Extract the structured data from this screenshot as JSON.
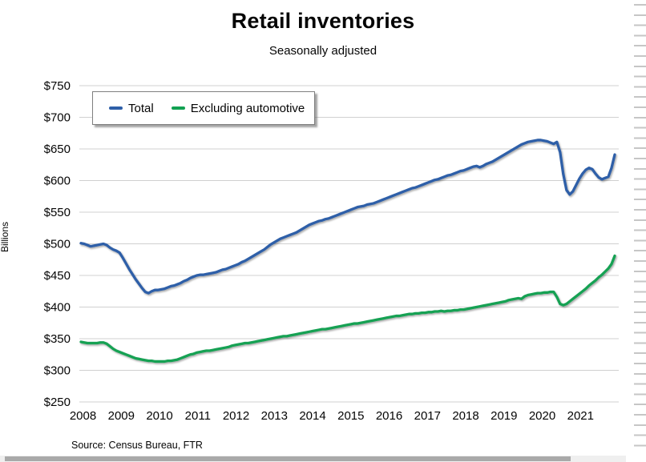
{
  "title": "Retail inventories",
  "subtitle": "Seasonally adjusted",
  "y_axis_title": "Billions",
  "source": "Source: Census Bureau, FTR",
  "colors": {
    "total_line": "#2E5FA8",
    "ex_auto_line": "#12A152",
    "gridline": "#d0d0d0",
    "text": "#050505"
  },
  "legend": {
    "items": [
      {
        "label": "Total",
        "color": "#2E5FA8"
      },
      {
        "label": "Excluding automotive",
        "color": "#12A152"
      }
    ]
  },
  "chart_data": {
    "type": "line",
    "title": "Retail inventories",
    "subtitle": "Seasonally adjusted",
    "xlabel": "",
    "ylabel": "Billions",
    "x_unit": "month",
    "x_range_start": "2008-01",
    "x_range_end": "2021-11",
    "x_tick_labels": [
      "2008",
      "2009",
      "2010",
      "2011",
      "2012",
      "2013",
      "2014",
      "2015",
      "2016",
      "2017",
      "2018",
      "2019",
      "2020",
      "2021"
    ],
    "ylim": [
      250,
      750
    ],
    "y_tick_step": 50,
    "y_tick_labels": [
      "$250",
      "$300",
      "$350",
      "$400",
      "$450",
      "$500",
      "$550",
      "$600",
      "$650",
      "$700",
      "$750"
    ],
    "grid": true,
    "legend_position": "top-left-inside",
    "series": [
      {
        "name": "Total",
        "color": "#2E5FA8",
        "values": [
          501,
          500,
          498,
          496,
          497,
          498,
          499,
          500,
          498,
          494,
          491,
          489,
          486,
          478,
          469,
          460,
          452,
          444,
          437,
          430,
          424,
          422,
          425,
          427,
          427,
          428,
          429,
          431,
          433,
          434,
          436,
          438,
          441,
          443,
          446,
          448,
          450,
          451,
          451,
          452,
          453,
          454,
          455,
          457,
          459,
          460,
          462,
          464,
          466,
          468,
          471,
          473,
          476,
          479,
          482,
          485,
          488,
          491,
          495,
          499,
          502,
          505,
          508,
          510,
          512,
          514,
          516,
          518,
          521,
          524,
          527,
          530,
          532,
          534,
          536,
          537,
          539,
          540,
          542,
          544,
          546,
          548,
          550,
          552,
          554,
          556,
          558,
          559,
          560,
          562,
          563,
          564,
          566,
          568,
          570,
          572,
          574,
          576,
          578,
          580,
          582,
          584,
          586,
          588,
          589,
          591,
          593,
          595,
          597,
          599,
          601,
          602,
          604,
          606,
          608,
          609,
          611,
          613,
          615,
          616,
          618,
          620,
          622,
          623,
          621,
          623,
          626,
          628,
          630,
          633,
          636,
          639,
          642,
          645,
          648,
          651,
          654,
          657,
          659,
          661,
          662,
          663,
          664,
          664,
          663,
          662,
          660,
          658,
          661,
          645,
          610,
          585,
          578,
          583,
          593,
          603,
          611,
          617,
          620,
          618,
          611,
          605,
          602,
          604,
          606,
          620,
          641
        ]
      },
      {
        "name": "Excluding automotive",
        "color": "#12A152",
        "values": [
          345,
          344,
          343,
          343,
          343,
          343,
          344,
          344,
          342,
          338,
          334,
          331,
          329,
          327,
          325,
          323,
          321,
          319,
          318,
          317,
          316,
          315,
          315,
          314,
          314,
          314,
          314,
          315,
          315,
          316,
          317,
          319,
          321,
          323,
          325,
          326,
          328,
          329,
          330,
          331,
          331,
          332,
          333,
          334,
          335,
          336,
          337,
          339,
          340,
          341,
          342,
          343,
          343,
          344,
          345,
          346,
          347,
          348,
          349,
          350,
          351,
          352,
          353,
          354,
          354,
          355,
          356,
          357,
          358,
          359,
          360,
          361,
          362,
          363,
          364,
          365,
          365,
          366,
          367,
          368,
          369,
          370,
          371,
          372,
          373,
          374,
          374,
          375,
          376,
          377,
          378,
          379,
          380,
          381,
          382,
          383,
          384,
          385,
          386,
          386,
          387,
          388,
          389,
          389,
          390,
          390,
          391,
          391,
          392,
          392,
          393,
          393,
          394,
          393,
          394,
          394,
          395,
          395,
          396,
          396,
          397,
          398,
          399,
          400,
          401,
          402,
          403,
          404,
          405,
          406,
          407,
          408,
          409,
          411,
          412,
          413,
          414,
          413,
          417,
          419,
          420,
          421,
          422,
          422,
          423,
          423,
          424,
          424,
          416,
          405,
          403,
          405,
          409,
          413,
          417,
          421,
          425,
          429,
          434,
          438,
          442,
          447,
          451,
          456,
          461,
          468,
          481
        ]
      }
    ]
  }
}
